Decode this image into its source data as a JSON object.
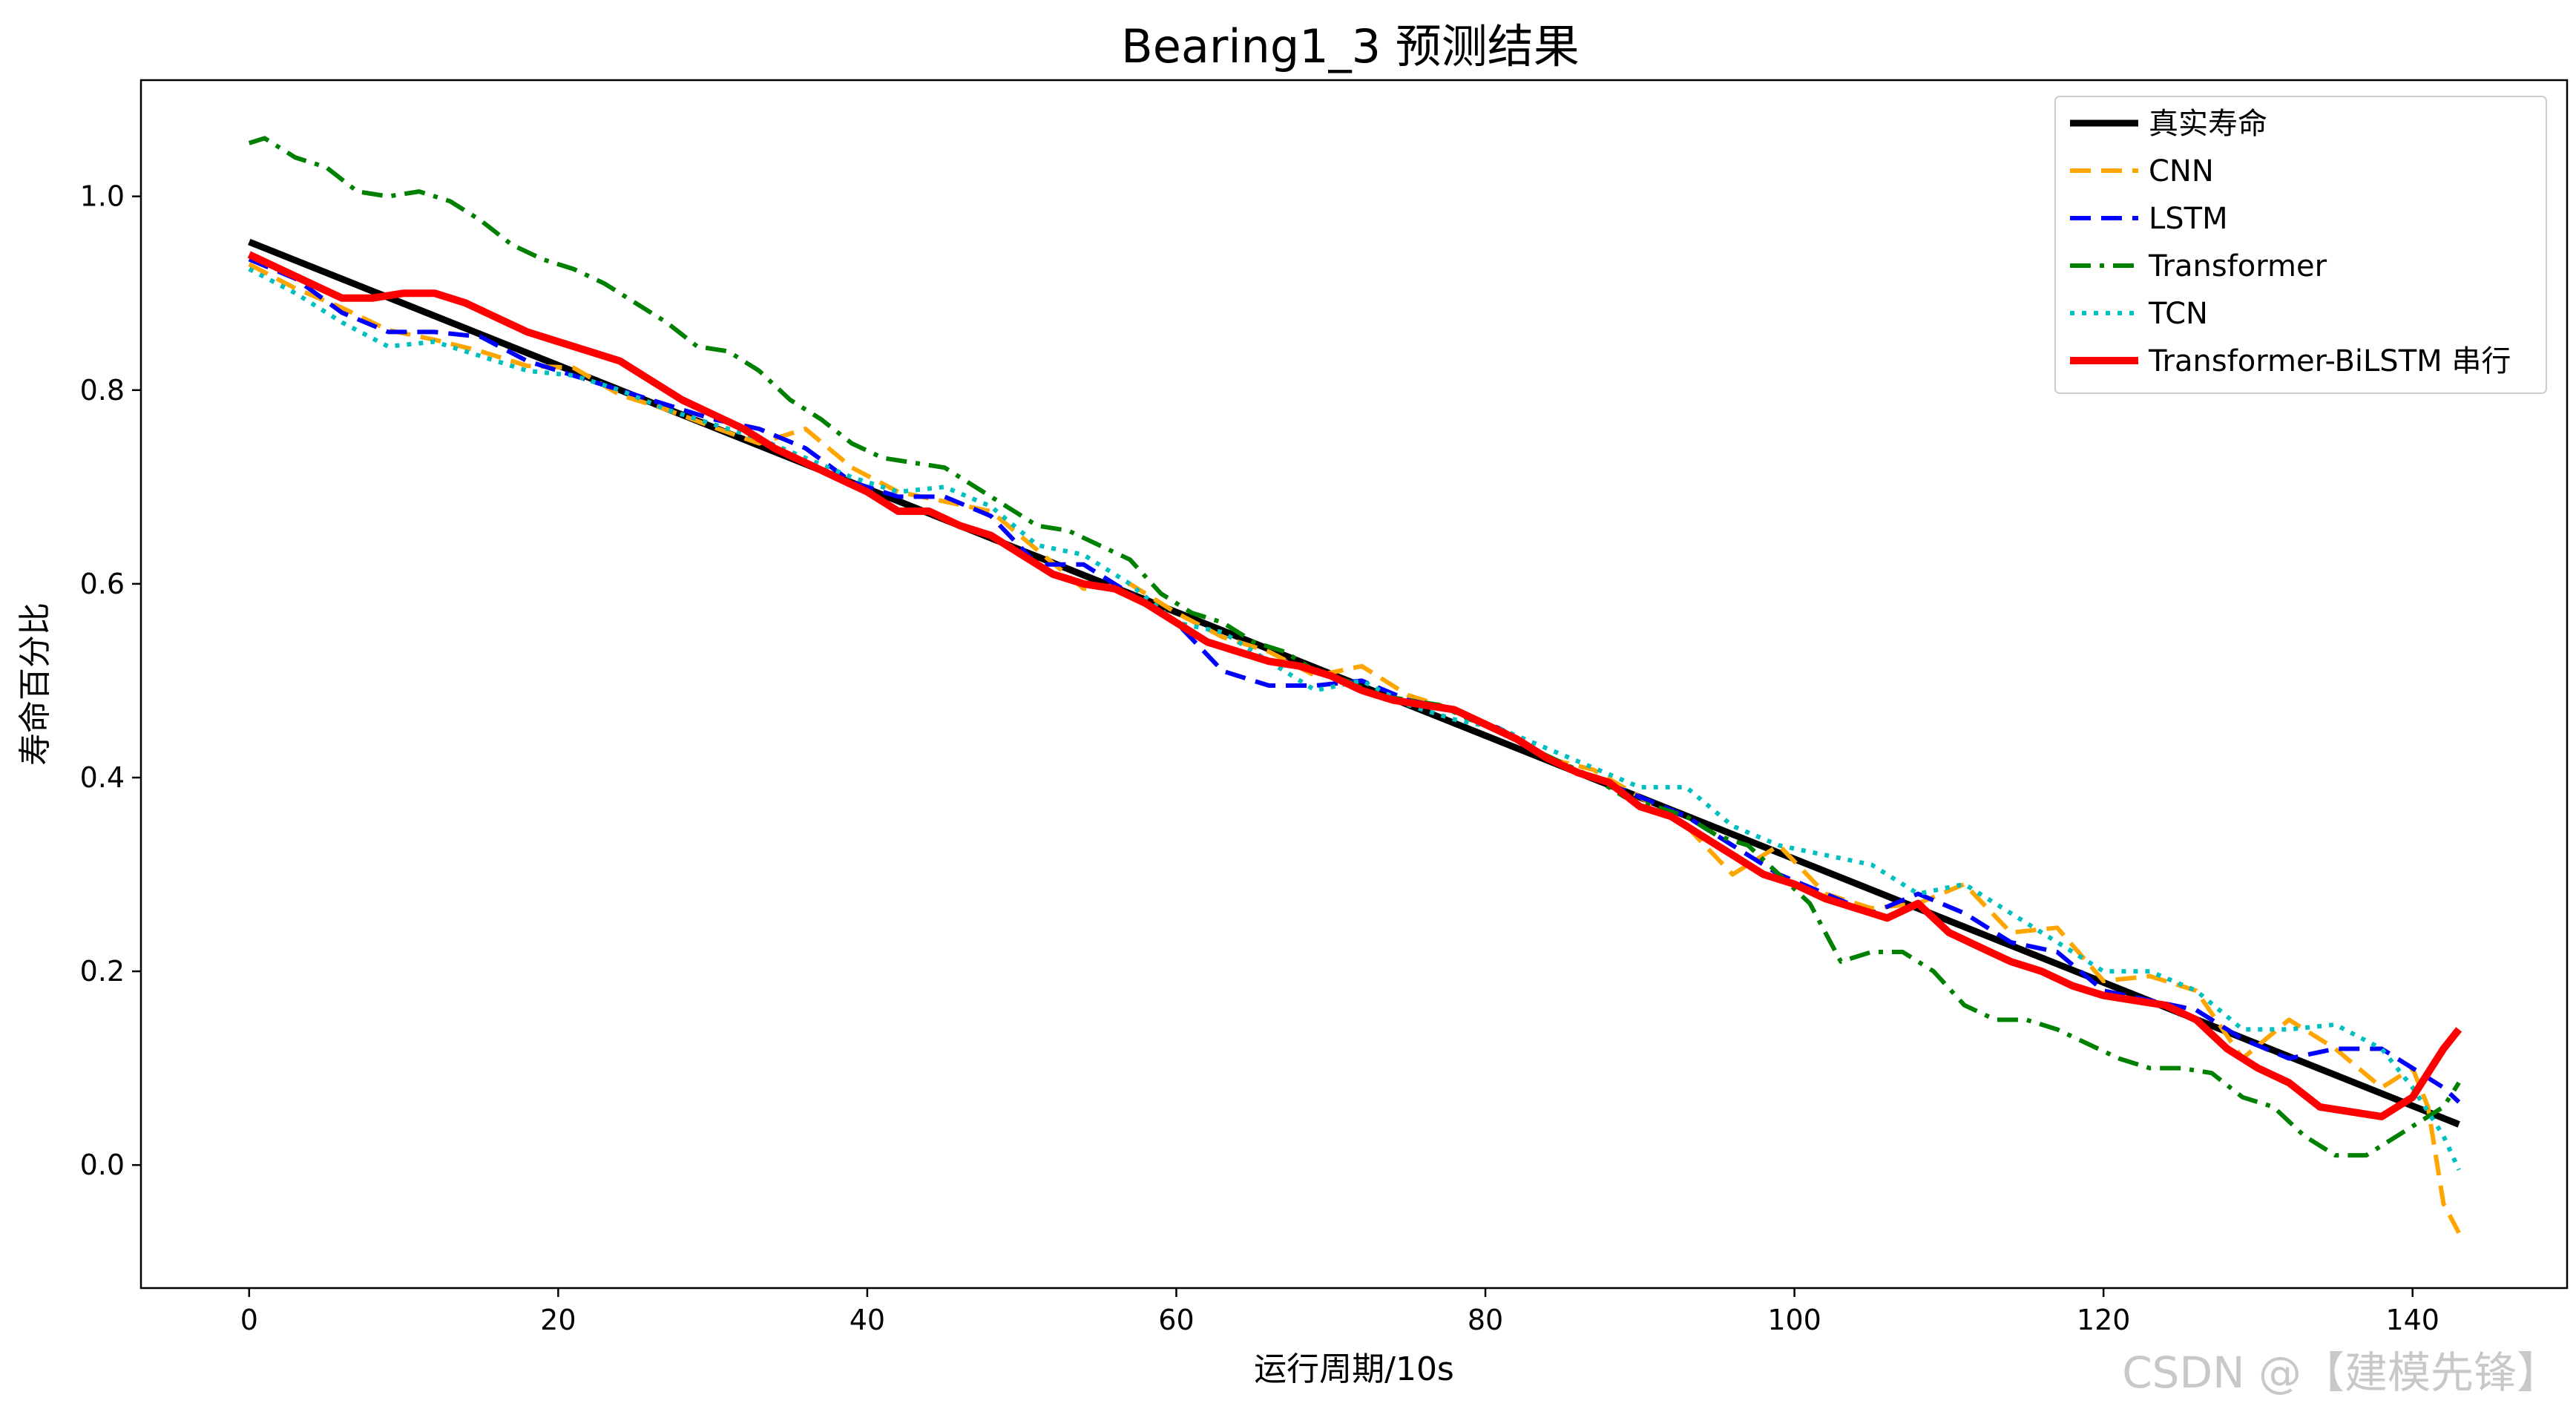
{
  "watermark": "CSDN @【建模先锋】",
  "chart_data": {
    "type": "line",
    "title": "Bearing1_3 预测结果",
    "xlabel": "运行周期/10s",
    "ylabel": "寿命百分比",
    "xlim": [
      -7,
      150
    ],
    "ylim": [
      -0.127,
      1.12
    ],
    "xticks": [
      0,
      20,
      40,
      60,
      80,
      100,
      120,
      140
    ],
    "yticks": [
      0.0,
      0.2,
      0.4,
      0.6,
      0.8,
      1.0
    ],
    "xtick_labels": [
      "0",
      "20",
      "40",
      "60",
      "80",
      "100",
      "120",
      "140"
    ],
    "ytick_labels": [
      "0.0",
      "0.2",
      "0.4",
      "0.6",
      "0.8",
      "1.0"
    ],
    "grid": false,
    "legend_position": "top-right",
    "series": [
      {
        "name": "真实寿命",
        "color": "#000000",
        "style": "solid",
        "width": 9,
        "x": [
          0,
          143
        ],
        "y": [
          0.953,
          0.042
        ]
      },
      {
        "name": "CNN",
        "color": "#ffa500",
        "style": "dashed",
        "width": 6,
        "x": [
          0,
          3,
          6,
          9,
          12,
          15,
          18,
          21,
          24,
          27,
          30,
          33,
          36,
          39,
          42,
          45,
          48,
          51,
          54,
          57,
          60,
          63,
          66,
          69,
          72,
          75,
          78,
          81,
          84,
          87,
          90,
          93,
          96,
          99,
          102,
          105,
          108,
          111,
          114,
          117,
          120,
          123,
          126,
          129,
          132,
          135,
          138,
          140,
          141,
          142,
          143
        ],
        "y": [
          0.93,
          0.905,
          0.885,
          0.862,
          0.852,
          0.84,
          0.825,
          0.823,
          0.795,
          0.78,
          0.762,
          0.745,
          0.76,
          0.72,
          0.695,
          0.685,
          0.675,
          0.635,
          0.595,
          0.6,
          0.57,
          0.545,
          0.53,
          0.505,
          0.515,
          0.485,
          0.47,
          0.45,
          0.42,
          0.408,
          0.38,
          0.35,
          0.3,
          0.33,
          0.28,
          0.265,
          0.27,
          0.29,
          0.24,
          0.245,
          0.19,
          0.195,
          0.18,
          0.11,
          0.15,
          0.12,
          0.08,
          0.1,
          0.06,
          -0.04,
          -0.07
        ]
      },
      {
        "name": "LSTM",
        "color": "#0000ff",
        "style": "dashed",
        "width": 6,
        "x": [
          0,
          3,
          6,
          9,
          12,
          15,
          18,
          21,
          24,
          27,
          30,
          33,
          36,
          39,
          42,
          45,
          48,
          51,
          54,
          57,
          60,
          63,
          66,
          69,
          72,
          75,
          78,
          81,
          84,
          87,
          90,
          93,
          96,
          99,
          102,
          105,
          108,
          111,
          114,
          117,
          120,
          123,
          126,
          129,
          132,
          135,
          138,
          140,
          142,
          143
        ],
        "y": [
          0.935,
          0.915,
          0.88,
          0.86,
          0.86,
          0.855,
          0.83,
          0.815,
          0.8,
          0.785,
          0.77,
          0.76,
          0.74,
          0.705,
          0.69,
          0.69,
          0.67,
          0.62,
          0.62,
          0.59,
          0.56,
          0.51,
          0.495,
          0.495,
          0.5,
          0.48,
          0.47,
          0.45,
          0.42,
          0.4,
          0.38,
          0.36,
          0.33,
          0.3,
          0.28,
          0.26,
          0.28,
          0.26,
          0.23,
          0.22,
          0.18,
          0.17,
          0.16,
          0.13,
          0.11,
          0.12,
          0.12,
          0.1,
          0.08,
          0.065
        ]
      },
      {
        "name": "Transformer",
        "color": "#008000",
        "style": "dashdot",
        "width": 6,
        "x": [
          0,
          1,
          3,
          5,
          7,
          9,
          11,
          13,
          15,
          17,
          19,
          21,
          23,
          25,
          27,
          29,
          31,
          33,
          35,
          37,
          39,
          41,
          43,
          45,
          47,
          49,
          51,
          53,
          55,
          57,
          59,
          61,
          63,
          65,
          67,
          69,
          71,
          73,
          75,
          77,
          79,
          81,
          83,
          85,
          87,
          89,
          91,
          93,
          95,
          97,
          99,
          101,
          103,
          105,
          107,
          109,
          111,
          113,
          115,
          117,
          119,
          121,
          123,
          125,
          127,
          129,
          131,
          133,
          135,
          137,
          139,
          141,
          142,
          143
        ],
        "y": [
          1.055,
          1.06,
          1.04,
          1.03,
          1.005,
          1.0,
          1.005,
          0.995,
          0.975,
          0.95,
          0.935,
          0.925,
          0.91,
          0.89,
          0.87,
          0.845,
          0.84,
          0.82,
          0.79,
          0.77,
          0.745,
          0.73,
          0.725,
          0.72,
          0.7,
          0.68,
          0.66,
          0.655,
          0.64,
          0.625,
          0.59,
          0.57,
          0.56,
          0.54,
          0.53,
          0.51,
          0.5,
          0.485,
          0.48,
          0.475,
          0.46,
          0.45,
          0.43,
          0.415,
          0.4,
          0.38,
          0.37,
          0.36,
          0.34,
          0.33,
          0.3,
          0.27,
          0.21,
          0.22,
          0.22,
          0.2,
          0.165,
          0.15,
          0.15,
          0.14,
          0.125,
          0.11,
          0.1,
          0.1,
          0.095,
          0.07,
          0.06,
          0.03,
          0.01,
          0.01,
          0.03,
          0.05,
          0.06,
          0.085
        ]
      },
      {
        "name": "TCN",
        "color": "#00bfbf",
        "style": "dotted",
        "width": 6,
        "x": [
          0,
          3,
          6,
          9,
          12,
          15,
          18,
          21,
          24,
          27,
          30,
          33,
          36,
          39,
          42,
          45,
          48,
          51,
          54,
          57,
          60,
          63,
          66,
          69,
          72,
          75,
          78,
          81,
          84,
          87,
          90,
          93,
          96,
          99,
          102,
          105,
          108,
          111,
          114,
          117,
          120,
          123,
          126,
          129,
          132,
          135,
          138,
          140,
          142,
          143
        ],
        "y": [
          0.925,
          0.9,
          0.87,
          0.845,
          0.85,
          0.835,
          0.82,
          0.815,
          0.8,
          0.78,
          0.765,
          0.75,
          0.73,
          0.71,
          0.695,
          0.7,
          0.68,
          0.64,
          0.63,
          0.6,
          0.56,
          0.55,
          0.52,
          0.49,
          0.5,
          0.475,
          0.46,
          0.45,
          0.43,
          0.41,
          0.39,
          0.39,
          0.35,
          0.33,
          0.32,
          0.31,
          0.28,
          0.29,
          0.26,
          0.23,
          0.2,
          0.2,
          0.18,
          0.14,
          0.14,
          0.145,
          0.12,
          0.08,
          0.03,
          -0.005
        ]
      },
      {
        "name": " Transformer-BiLSTM 串行",
        "color": "#ff0000",
        "style": "solid",
        "width": 10,
        "x": [
          0,
          2,
          4,
          6,
          8,
          10,
          12,
          14,
          16,
          18,
          20,
          22,
          24,
          26,
          28,
          30,
          32,
          34,
          36,
          38,
          40,
          42,
          44,
          46,
          48,
          50,
          52,
          54,
          56,
          58,
          60,
          62,
          64,
          66,
          68,
          70,
          72,
          74,
          76,
          78,
          80,
          82,
          84,
          86,
          88,
          90,
          92,
          94,
          96,
          98,
          100,
          102,
          104,
          106,
          108,
          110,
          112,
          114,
          116,
          118,
          120,
          122,
          124,
          126,
          128,
          130,
          132,
          134,
          136,
          138,
          140,
          141,
          142,
          143
        ],
        "y": [
          0.94,
          0.925,
          0.91,
          0.895,
          0.895,
          0.9,
          0.9,
          0.89,
          0.875,
          0.86,
          0.85,
          0.84,
          0.83,
          0.81,
          0.79,
          0.775,
          0.76,
          0.74,
          0.725,
          0.71,
          0.695,
          0.675,
          0.675,
          0.66,
          0.65,
          0.63,
          0.61,
          0.6,
          0.595,
          0.58,
          0.56,
          0.54,
          0.53,
          0.52,
          0.515,
          0.505,
          0.49,
          0.48,
          0.475,
          0.47,
          0.455,
          0.44,
          0.42,
          0.405,
          0.395,
          0.37,
          0.36,
          0.34,
          0.32,
          0.3,
          0.29,
          0.275,
          0.265,
          0.255,
          0.27,
          0.24,
          0.225,
          0.21,
          0.2,
          0.185,
          0.175,
          0.17,
          0.165,
          0.15,
          0.12,
          0.1,
          0.085,
          0.06,
          0.055,
          0.05,
          0.07,
          0.095,
          0.12,
          0.14
        ]
      }
    ]
  }
}
